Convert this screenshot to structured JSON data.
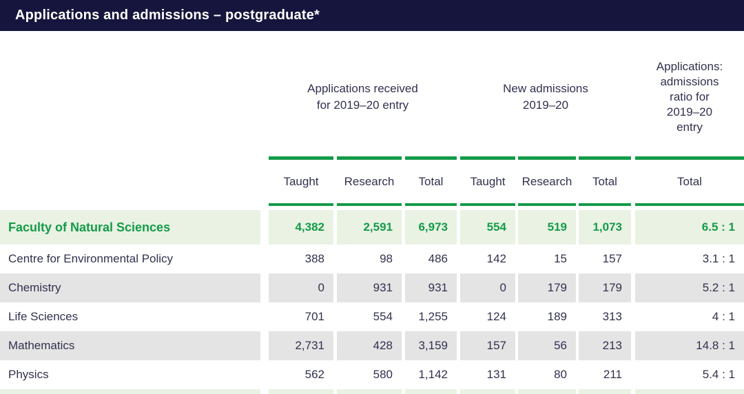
{
  "title": "Applications and admissions – postgraduate*",
  "colors": {
    "navy_bar": "#15153d",
    "green_accent": "#149b49",
    "light_green_row": "#e9f2e3",
    "grey_row": "#e4e4e4",
    "text": "#31314f"
  },
  "table": {
    "group_headers": {
      "applications": "Applications received\nfor 2019–20 entry",
      "admissions": "New admissions\n2019–20",
      "ratio": "Applications:\nadmissions\nratio for\n2019–20\nentry"
    },
    "column_headers": [
      "Taught",
      "Research",
      "Total",
      "Taught",
      "Research",
      "Total",
      "Total"
    ],
    "faculty_row": {
      "name": "Faculty of Natural Sciences",
      "values": [
        "4,382",
        "2,591",
        "6,973",
        "554",
        "519",
        "1,073",
        "6.5 : 1"
      ]
    },
    "rows": [
      {
        "name": "Centre for Environmental Policy",
        "values": [
          "388",
          "98",
          "486",
          "142",
          "15",
          "157",
          "3.1 : 1"
        ]
      },
      {
        "name": "Chemistry",
        "values": [
          "0",
          "931",
          "931",
          "0",
          "179",
          "179",
          "5.2 : 1"
        ]
      },
      {
        "name": "Life Sciences",
        "values": [
          "701",
          "554",
          "1,255",
          "124",
          "189",
          "313",
          "4 : 1"
        ]
      },
      {
        "name": "Mathematics",
        "values": [
          "2,731",
          "428",
          "3,159",
          "157",
          "56",
          "213",
          "14.8 : 1"
        ]
      },
      {
        "name": "Physics",
        "values": [
          "562",
          "580",
          "1,142",
          "131",
          "80",
          "211",
          "5.4 : 1"
        ]
      }
    ]
  }
}
